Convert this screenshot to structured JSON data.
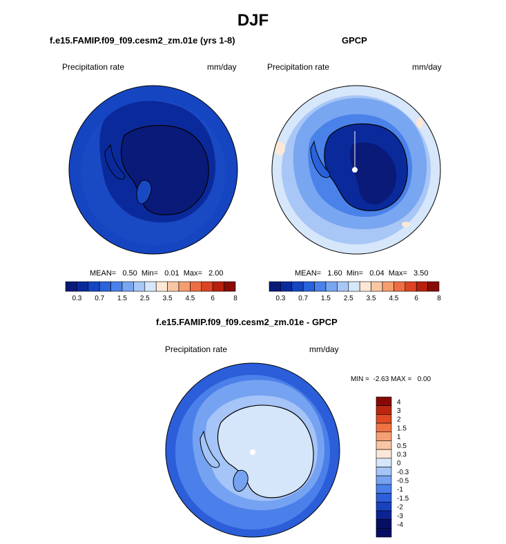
{
  "main_title": "DJF",
  "panels": [
    {
      "title": "f.e15.FAMIP.f09_f09.cesm2_zm.01e (yrs 1-8)",
      "left_label": "Precipitation rate",
      "right_label": "mm/day",
      "stats": "MEAN=   0.50  Min=   0.01  Max=   2.00"
    },
    {
      "title": "GPCP",
      "left_label": "Precipitation rate",
      "right_label": "mm/day",
      "stats": "MEAN=   1.60  Min=   0.04  Max=   3.50"
    },
    {
      "title": "f.e15.FAMIP.f09_f09.cesm2_zm.01e - GPCP",
      "left_label": "Precipitation rate",
      "right_label": "mm/day",
      "stats": "MIN =  -2.63 MAX =   0.00"
    }
  ],
  "colors": {
    "map_abs": [
      "#0a1a78",
      "#0a2a9c",
      "#1545c0",
      "#2a62dc",
      "#4a82ea",
      "#78a6f0",
      "#a8c6f6",
      "#d6e6fb",
      "#fde7d6",
      "#f9c6a4",
      "#f59e70",
      "#ee6e43",
      "#dd4423",
      "#b8200e",
      "#880c06"
    ],
    "diff": [
      "#070f63",
      "#0d2391",
      "#1a42bd",
      "#2b5ed8",
      "#4b80ea",
      "#76a2f2",
      "#a5c4f7",
      "#d5e6fb",
      "#fde8d8",
      "#f9c5a4",
      "#f59f75",
      "#ef7345",
      "#e04b23",
      "#bb260f",
      "#870904"
    ]
  },
  "chart_data": [
    {
      "type": "heatmap",
      "title": "f.e15.FAMIP.f09_f09.cesm2_zm.01e (yrs 1-8)",
      "variable": "Precipitation rate",
      "units": "mm/day",
      "mean": 0.5,
      "min": 0.01,
      "max": 2.0,
      "projection": "polar stereographic, south pole",
      "colorbar_ticks": [
        "0.3",
        "0.7",
        "1.5",
        "2.5",
        "3.5",
        "4.5",
        "6",
        "8"
      ]
    },
    {
      "type": "heatmap",
      "title": "GPCP",
      "variable": "Precipitation rate",
      "units": "mm/day",
      "mean": 1.6,
      "min": 0.04,
      "max": 3.5,
      "projection": "polar stereographic, south pole",
      "colorbar_ticks": [
        "0.3",
        "0.7",
        "1.5",
        "2.5",
        "3.5",
        "4.5",
        "6",
        "8"
      ]
    },
    {
      "type": "heatmap",
      "title": "f.e15.FAMIP.f09_f09.cesm2_zm.01e - GPCP",
      "variable": "Precipitation rate",
      "units": "mm/day",
      "min": -2.63,
      "max": 0.0,
      "projection": "polar stereographic, south pole",
      "colorbar_ticks": [
        "4",
        "3",
        "2",
        "1.5",
        "1",
        "0.5",
        "0.3",
        "0",
        "-0.3",
        "-0.5",
        "-1",
        "-1.5",
        "-2",
        "-3",
        "-4"
      ]
    }
  ]
}
